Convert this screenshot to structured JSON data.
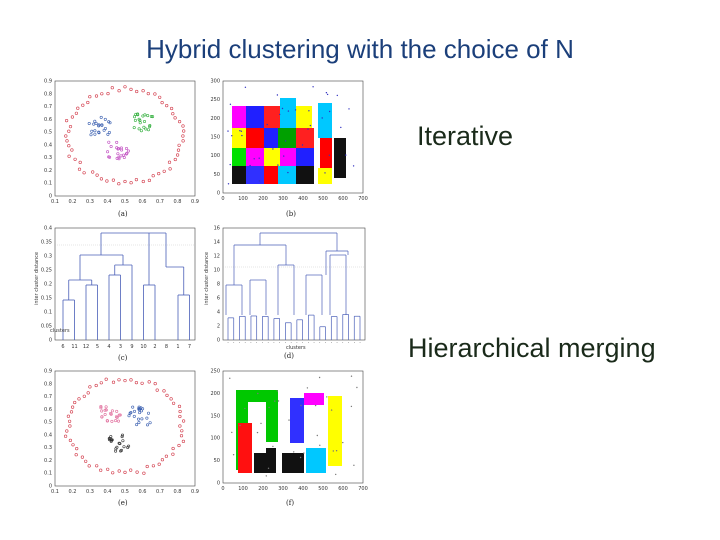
{
  "slide": {
    "title": "Hybrid clustering with the choice of N",
    "label_iterative": "Iterative",
    "label_hierarchical": "Hierarchical merging"
  },
  "figure": {
    "panels": [
      {
        "id": "a",
        "caption": "(a)",
        "xticks": [
          "0.1",
          "0.2",
          "0.3",
          "0.4",
          "0.5",
          "0.6",
          "0.7",
          "0.8",
          "0.9"
        ],
        "yticks": [
          "0.9",
          "0.8",
          "0.7",
          "0.6",
          "0.5",
          "0.4",
          "0.3",
          "0.2",
          "0.1",
          "0"
        ]
      },
      {
        "id": "b",
        "caption": "(b)",
        "xticks": [
          "0",
          "100",
          "200",
          "300",
          "400",
          "500",
          "600",
          "700"
        ],
        "yticks": [
          "300",
          "250",
          "200",
          "150",
          "100",
          "50",
          "0"
        ]
      },
      {
        "id": "c",
        "caption": "(c)",
        "xlabel": "clusters",
        "ylabel": "inter cluster distance",
        "yticks": [
          "0.4",
          "0.35",
          "0.3",
          "0.25",
          "0.2",
          "0.15",
          "0.1",
          "0.05",
          "0"
        ],
        "xticks": [
          "6",
          "11",
          "12",
          "5",
          "4",
          "3",
          "9",
          "10",
          "2",
          "8",
          "1",
          "7"
        ]
      },
      {
        "id": "d",
        "caption": "(d)",
        "xlabel": "clusters",
        "ylabel": "inter cluster distance",
        "yticks": [
          "16",
          "14",
          "12",
          "10",
          "8",
          "6",
          "4",
          "2",
          "0"
        ]
      },
      {
        "id": "e",
        "caption": "(e)",
        "xticks": [
          "0.1",
          "0.2",
          "0.3",
          "0.4",
          "0.5",
          "0.6",
          "0.7",
          "0.8",
          "0.9"
        ],
        "yticks": [
          "0.9",
          "0.8",
          "0.7",
          "0.6",
          "0.5",
          "0.4",
          "0.3",
          "0.2",
          "0.1",
          "0"
        ]
      },
      {
        "id": "f",
        "caption": "(f)",
        "xticks": [
          "0",
          "100",
          "200",
          "300",
          "400",
          "500",
          "600",
          "700"
        ],
        "yticks": [
          "250",
          "200",
          "150",
          "100",
          "50",
          "0"
        ]
      }
    ]
  }
}
